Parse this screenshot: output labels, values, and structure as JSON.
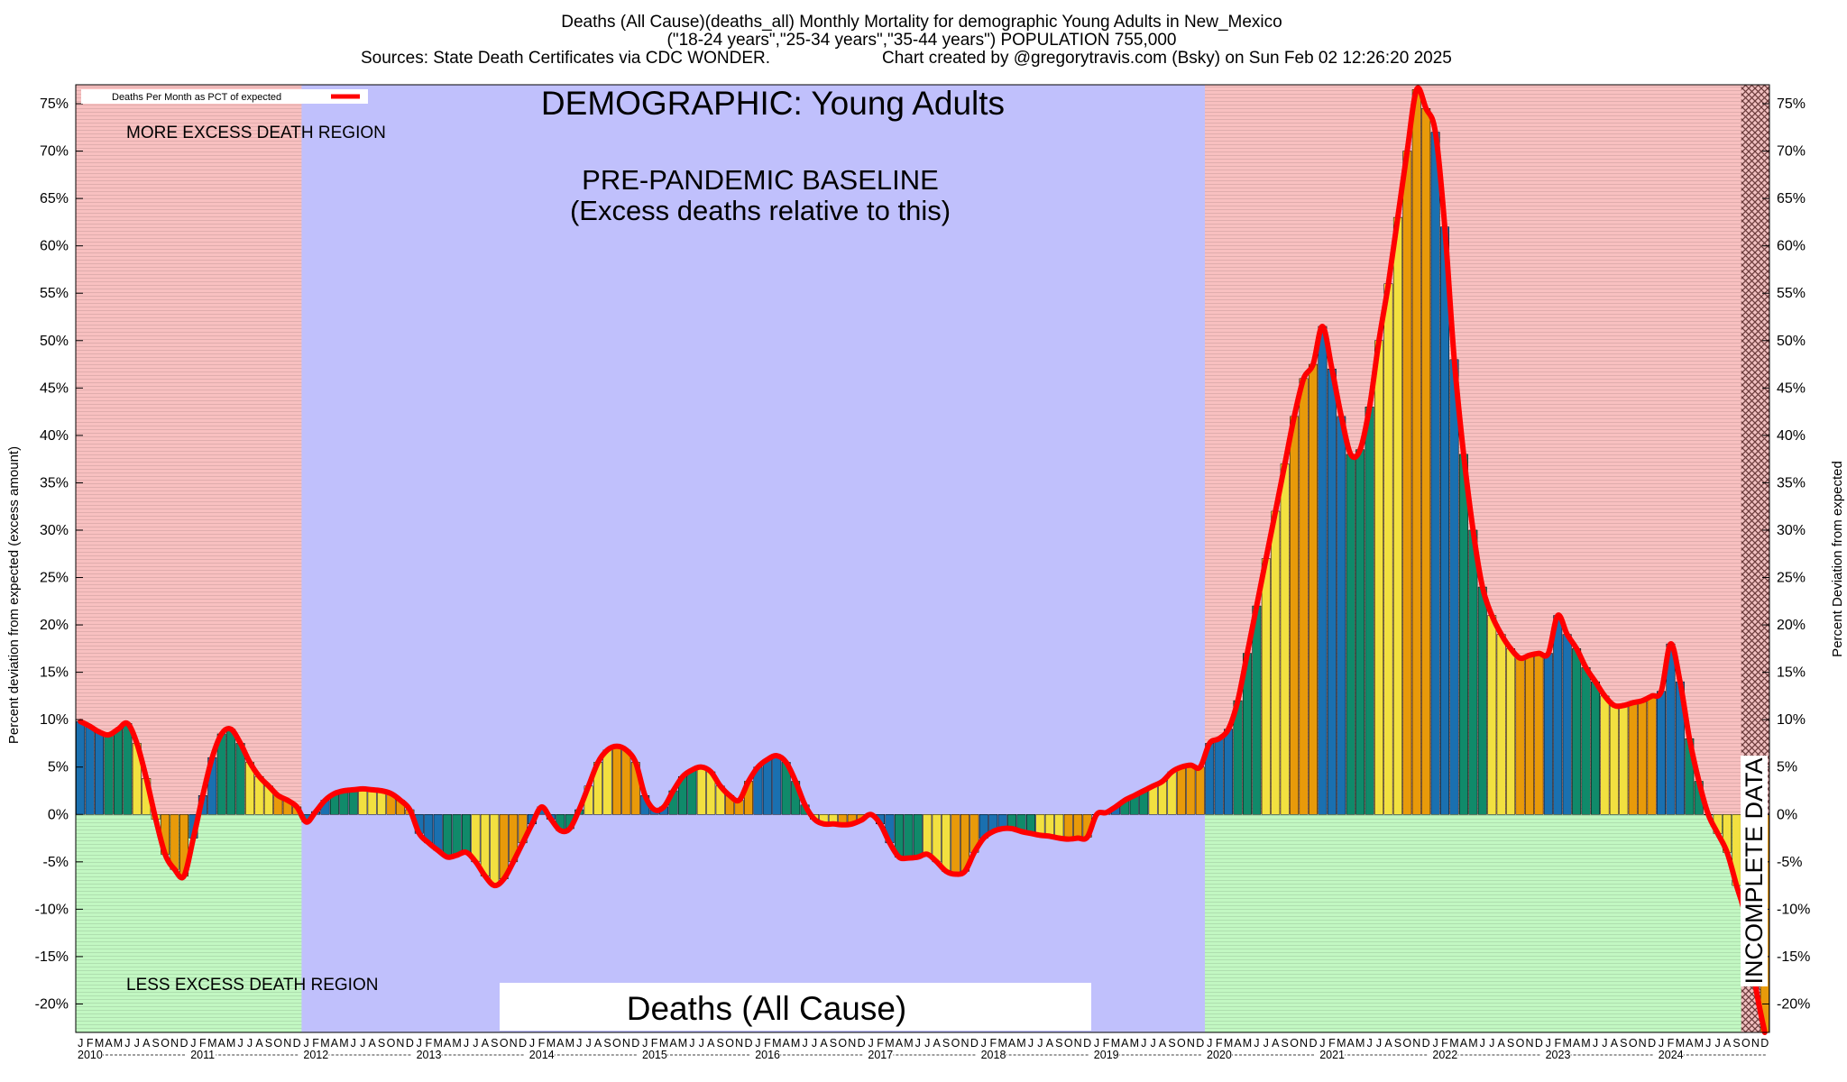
{
  "header": {
    "title_line1": "Deaths (All Cause)(deaths_all) Monthly Mortality for demographic Young Adults in New_Mexico",
    "title_line2": "(\"18-24 years\",\"25-34 years\",\"35-44 years\") POPULATION 755,000",
    "title_line3_left": "Sources: State Death Certificates via CDC WONDER.",
    "title_line3_right": "Chart created by @gregorytravis.com (Bsky) on Sun Feb 02 12:26:20 2025"
  },
  "labels": {
    "demographic": "DEMOGRAPHIC: Young Adults",
    "baseline_line1": "PRE-PANDEMIC BASELINE",
    "baseline_line2": "(Excess deaths relative to this)",
    "more_excess": "MORE EXCESS DEATH REGION",
    "less_excess": "LESS EXCESS DEATH REGION",
    "bottom_banner": "Deaths (All Cause)",
    "incomplete": "INCOMPLETE DATA",
    "legend": "Deaths Per Month as PCT of expected",
    "ylabel_left": "Percent deviation from expected (excess amount)",
    "ylabel_right": "Percent Deviation from expected"
  },
  "colors": {
    "excess_region": "#f8c0c0",
    "less_region": "#c2f7c2",
    "baseline_region": "#c0c0fc",
    "line": "#ff0000",
    "bar_blue": "#1a70b0",
    "bar_green": "#108a6a",
    "bar_yellow": "#f2e040",
    "bar_orange": "#e89a0a",
    "hatch": "#c87878"
  },
  "chart_data": {
    "type": "bar",
    "title": "Deaths (All Cause)(deaths_all) Monthly Mortality for demographic Young Adults in New_Mexico",
    "ylabel": "Percent deviation from expected (excess amount)",
    "ylabel_right": "Percent Deviation from expected",
    "ylim": [
      -23,
      77
    ],
    "yticks": [
      -20,
      -15,
      -10,
      -5,
      0,
      5,
      10,
      15,
      20,
      25,
      30,
      35,
      40,
      45,
      50,
      55,
      60,
      65,
      70,
      75
    ],
    "years": [
      "2010",
      "2011",
      "2012",
      "2013",
      "2014",
      "2015",
      "2016",
      "2017",
      "2018",
      "2019",
      "2020",
      "2021",
      "2022",
      "2023",
      "2024"
    ],
    "month_letters": [
      "J",
      "F",
      "M",
      "A",
      "M",
      "J",
      "J",
      "A",
      "S",
      "O",
      "N",
      "D"
    ],
    "legend": [
      "Deaths Per Month as PCT of expected"
    ],
    "legend_position": "top-left",
    "baseline_period": [
      "2012-01",
      "2019-12"
    ],
    "incomplete_period": [
      "2024-10",
      "2024-12"
    ],
    "series": [
      {
        "name": "Deaths Per Month as PCT of expected",
        "values": [
          9.8,
          9.3,
          8.7,
          8.4,
          9.0,
          9.6,
          7.5,
          3.8,
          -0.5,
          -4.2,
          -5.8,
          -6.5,
          -2.5,
          2.0,
          6.0,
          8.5,
          9.0,
          7.5,
          5.5,
          4.0,
          3.0,
          2.0,
          1.5,
          0.8,
          -0.8,
          0.3,
          1.5,
          2.2,
          2.5,
          2.6,
          2.7,
          2.6,
          2.5,
          2.2,
          1.5,
          0.5,
          -2.0,
          -3.0,
          -3.8,
          -4.5,
          -4.3,
          -4.0,
          -5.0,
          -6.5,
          -7.5,
          -6.8,
          -5.0,
          -3.0,
          -1.0,
          0.8,
          -0.5,
          -1.7,
          -1.5,
          0.5,
          3.0,
          5.5,
          6.8,
          7.2,
          6.8,
          5.5,
          2.0,
          0.5,
          0.8,
          2.5,
          4.0,
          4.7,
          5.0,
          4.5,
          3.0,
          2.0,
          1.5,
          3.5,
          5.0,
          5.8,
          6.2,
          5.5,
          3.5,
          1.0,
          -0.5,
          -1.0,
          -1.0,
          -1.1,
          -1.0,
          -0.6,
          0.0,
          -1.0,
          -3.0,
          -4.5,
          -4.6,
          -4.5,
          -4.2,
          -5.0,
          -6.0,
          -6.3,
          -6.0,
          -4.0,
          -2.5,
          -1.8,
          -1.5,
          -1.5,
          -1.8,
          -2.0,
          -2.2,
          -2.3,
          -2.5,
          -2.6,
          -2.5,
          -2.4,
          0.0,
          0.2,
          0.8,
          1.5,
          2.0,
          2.5,
          3.0,
          3.5,
          4.5,
          5.0,
          5.2,
          5.0,
          7.5,
          8.0,
          9.0,
          12.0,
          17.0,
          22.0,
          27.0,
          32.0,
          37.0,
          42.0,
          46.0,
          47.5,
          51.5,
          47.0,
          42.0,
          38.0,
          38.5,
          43.0,
          50.0,
          56.0,
          63.0,
          70.0,
          76.5,
          74.5,
          72.0,
          62.0,
          48.0,
          38.0,
          30.0,
          24.0,
          21.0,
          19.0,
          17.5,
          16.5,
          16.8,
          17.0,
          17.0,
          21.0,
          19.0,
          17.5,
          15.5,
          14.0,
          12.5,
          11.5,
          11.5,
          11.8,
          12.0,
          12.5,
          13.0,
          18.0,
          14.0,
          8.0,
          3.5,
          0.0,
          -2.0,
          -4.0,
          -7.5,
          -11.0,
          -18.0,
          -23.0
        ]
      }
    ]
  }
}
